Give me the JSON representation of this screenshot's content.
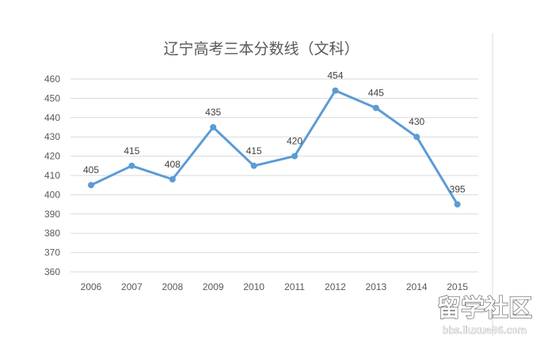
{
  "chart_data": {
    "type": "line",
    "title": "辽宁高考三本分数线（文科）",
    "xlabel": "",
    "ylabel": "",
    "categories": [
      "2006",
      "2007",
      "2008",
      "2009",
      "2010",
      "2011",
      "2012",
      "2013",
      "2014",
      "2015"
    ],
    "values": [
      405,
      415,
      408,
      435,
      415,
      420,
      454,
      445,
      430,
      395
    ],
    "ylim": [
      360,
      460
    ],
    "yticks": [
      "360",
      "370",
      "380",
      "390",
      "400",
      "410",
      "420",
      "430",
      "440",
      "450",
      "460"
    ],
    "grid": true,
    "legend": "none",
    "line_color": "#5b9bd5"
  },
  "watermark": {
    "text": "留学社区",
    "url": "bbs.liuxue86.com"
  }
}
